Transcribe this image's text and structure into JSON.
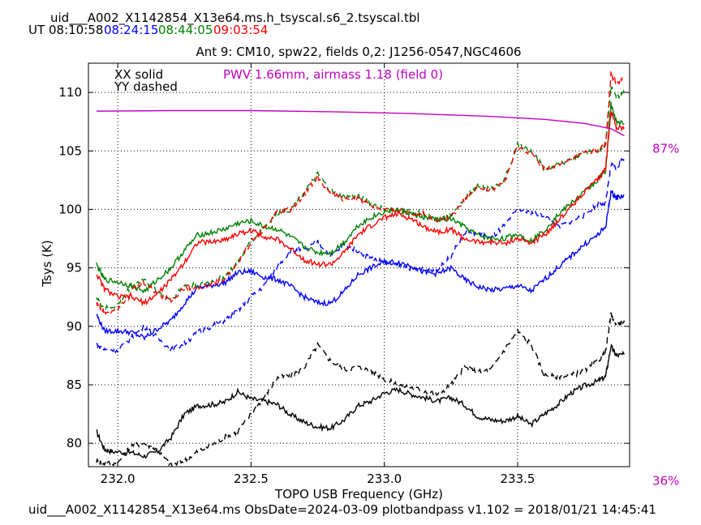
{
  "header": {
    "filename": "uid___A002_X1142854_X13e64.ms.h_tsyscal.s6_2.tsyscal.tbl",
    "ut_label": "UT",
    "times": [
      {
        "text": "08:10:58",
        "color": "#000000"
      },
      {
        "text": "08:24:15",
        "color": "#0000ff"
      },
      {
        "text": "08:44:05",
        "color": "#008000"
      },
      {
        "text": "09:03:54",
        "color": "#ff0000"
      }
    ]
  },
  "footer": {
    "text": "uid___A002_X1142854_X13e64.ms  ObsDate=2024-03-09   plotbandpass v1.102 = 2018/01/21 14:45:41"
  },
  "chart_data": {
    "type": "line",
    "title": "Ant 9: CM10,  spw22,  fields 0,2: J1256-0547,NGC4606",
    "xlabel": "TOPO USB Frequency (GHz)",
    "ylabel": "Tsys (K)",
    "xlim": [
      231.89,
      233.92
    ],
    "ylim": [
      78,
      112.5
    ],
    "xticks": [
      232.0,
      232.5,
      233.0,
      233.5
    ],
    "xtick_labels": [
      "232.0",
      "232.5",
      "233.0",
      "233.5"
    ],
    "yticks": [
      80,
      85,
      90,
      95,
      100,
      105,
      110
    ],
    "ytick_labels": [
      "80",
      "85",
      "90",
      "95",
      "100",
      "105",
      "110"
    ],
    "grid": true,
    "legend_text": [
      "XX solid",
      "YY dashed"
    ],
    "annotation": {
      "text": "PWV 1.66mm, airmass 1.18 (field 0)",
      "color": "#c000c0"
    },
    "atmosphere": {
      "color": "#c000c0",
      "right_labels": [
        {
          "text": "87%",
          "y": 105.2
        },
        {
          "text": "36%",
          "y": 76.8
        }
      ],
      "x": [
        231.92,
        232.2,
        232.5,
        232.8,
        233.1,
        233.4,
        233.6,
        233.75,
        233.85,
        233.9
      ],
      "y": [
        108.4,
        108.45,
        108.45,
        108.35,
        108.2,
        107.95,
        107.7,
        107.35,
        106.9,
        106.3
      ]
    },
    "series": [
      {
        "color": "#000000",
        "dash": false,
        "x": [
          231.92,
          231.95,
          231.98,
          232.05,
          232.1,
          232.15,
          232.2,
          232.25,
          232.3,
          232.35,
          232.4,
          232.45,
          232.5,
          232.55,
          232.6,
          232.65,
          232.7,
          232.75,
          232.8,
          232.85,
          232.9,
          232.95,
          233.0,
          233.05,
          233.1,
          233.15,
          233.2,
          233.25,
          233.3,
          233.35,
          233.4,
          233.45,
          233.5,
          233.55,
          233.6,
          233.65,
          233.7,
          233.75,
          233.8,
          233.83,
          233.85,
          233.87,
          233.9
        ],
        "y": [
          81.0,
          79.5,
          79.3,
          79.2,
          78.9,
          79.3,
          80.5,
          82.5,
          83.2,
          83.3,
          83.5,
          84.4,
          83.8,
          83.6,
          83.3,
          82.4,
          81.8,
          81.4,
          81.3,
          82.0,
          83.2,
          83.6,
          84.3,
          84.6,
          84.2,
          83.9,
          83.6,
          83.9,
          83.3,
          82.3,
          82.0,
          81.9,
          82.3,
          81.6,
          82.5,
          83.3,
          84.3,
          84.9,
          85.3,
          85.7,
          88.3,
          87.5,
          87.6
        ]
      },
      {
        "color": "#000000",
        "dash": true,
        "x": [
          231.92,
          231.95,
          232.0,
          232.05,
          232.1,
          232.15,
          232.2,
          232.25,
          232.3,
          232.35,
          232.4,
          232.45,
          232.5,
          232.55,
          232.6,
          232.65,
          232.7,
          232.75,
          232.8,
          232.85,
          232.9,
          232.95,
          233.0,
          233.05,
          233.1,
          233.15,
          233.2,
          233.25,
          233.3,
          233.35,
          233.4,
          233.45,
          233.5,
          233.55,
          233.6,
          233.65,
          233.7,
          233.75,
          233.8,
          233.83,
          233.85,
          233.87,
          233.9
        ],
        "y": [
          78.5,
          78.3,
          78.3,
          79.8,
          80.0,
          79.4,
          78.1,
          78.5,
          79.3,
          79.8,
          80.5,
          81.0,
          82.5,
          84.0,
          85.6,
          85.8,
          86.5,
          88.4,
          87.0,
          86.3,
          86.5,
          86.2,
          85.5,
          85.0,
          84.8,
          84.5,
          84.2,
          85.0,
          86.5,
          86.1,
          86.3,
          88.0,
          89.6,
          88.5,
          85.8,
          85.7,
          85.8,
          86.2,
          87.0,
          87.8,
          91.0,
          90.2,
          90.5
        ]
      },
      {
        "color": "#0000ff",
        "dash": false,
        "x": [
          231.92,
          231.95,
          232.0,
          232.05,
          232.1,
          232.15,
          232.2,
          232.25,
          232.3,
          232.35,
          232.4,
          232.45,
          232.5,
          232.55,
          232.6,
          232.65,
          232.7,
          232.75,
          232.8,
          232.85,
          232.9,
          232.95,
          233.0,
          233.05,
          233.1,
          233.15,
          233.2,
          233.25,
          233.3,
          233.35,
          233.4,
          233.45,
          233.5,
          233.55,
          233.6,
          233.65,
          233.7,
          233.75,
          233.8,
          233.83,
          233.85,
          233.87,
          233.9
        ],
        "y": [
          91.0,
          89.6,
          89.6,
          89.5,
          89.0,
          89.8,
          90.5,
          92.0,
          93.3,
          93.5,
          93.7,
          94.6,
          94.7,
          94.2,
          94.0,
          93.4,
          92.5,
          92.0,
          92.0,
          93.0,
          94.4,
          95.0,
          95.5,
          95.5,
          95.2,
          94.6,
          94.5,
          95.0,
          94.0,
          93.4,
          93.1,
          93.2,
          93.5,
          93.0,
          94.0,
          95.0,
          96.0,
          97.0,
          97.8,
          98.5,
          101.5,
          101.0,
          101.2
        ]
      },
      {
        "color": "#0000ff",
        "dash": true,
        "x": [
          231.92,
          231.95,
          232.0,
          232.05,
          232.1,
          232.15,
          232.2,
          232.25,
          232.3,
          232.35,
          232.4,
          232.45,
          232.5,
          232.55,
          232.6,
          232.65,
          232.7,
          232.75,
          232.8,
          232.85,
          232.9,
          232.95,
          233.0,
          233.05,
          233.1,
          233.15,
          233.2,
          233.25,
          233.3,
          233.35,
          233.4,
          233.45,
          233.5,
          233.55,
          233.6,
          233.65,
          233.7,
          233.75,
          233.8,
          233.83,
          233.85,
          233.87,
          233.9
        ],
        "y": [
          88.5,
          88.0,
          88.0,
          89.0,
          90.0,
          89.0,
          88.0,
          88.5,
          89.5,
          90.0,
          90.5,
          91.3,
          92.5,
          93.5,
          95.2,
          96.5,
          96.5,
          97.2,
          96.0,
          97.0,
          96.5,
          95.8,
          95.5,
          95.2,
          95.0,
          94.8,
          94.8,
          96.0,
          98.0,
          98.0,
          97.5,
          98.6,
          100.0,
          99.7,
          99.5,
          98.5,
          99.0,
          99.5,
          100.5,
          100.5,
          103.8,
          103.5,
          104.5
        ]
      },
      {
        "color": "#008000",
        "dash": false,
        "x": [
          231.92,
          231.95,
          232.0,
          232.05,
          232.1,
          232.15,
          232.2,
          232.25,
          232.3,
          232.35,
          232.4,
          232.45,
          232.5,
          232.55,
          232.6,
          232.65,
          232.7,
          232.75,
          232.8,
          232.85,
          232.9,
          232.95,
          233.0,
          233.05,
          233.1,
          233.15,
          233.2,
          233.25,
          233.3,
          233.35,
          233.4,
          233.45,
          233.5,
          233.55,
          233.6,
          233.65,
          233.7,
          233.75,
          233.8,
          233.83,
          233.85,
          233.87,
          233.9
        ],
        "y": [
          95.3,
          94.0,
          93.8,
          93.5,
          93.0,
          94.0,
          95.0,
          96.5,
          97.8,
          98.0,
          98.3,
          98.8,
          99.0,
          98.5,
          98.3,
          97.6,
          96.8,
          96.3,
          96.3,
          97.2,
          98.6,
          99.3,
          99.8,
          100.0,
          99.6,
          99.3,
          99.1,
          99.2,
          98.5,
          97.8,
          97.5,
          97.5,
          97.9,
          97.3,
          98.2,
          99.5,
          100.5,
          101.5,
          102.5,
          103.3,
          109.0,
          107.5,
          107.3
        ]
      },
      {
        "color": "#008000",
        "dash": true,
        "x": [
          231.92,
          231.95,
          232.0,
          232.05,
          232.1,
          232.15,
          232.2,
          232.25,
          232.3,
          232.35,
          232.4,
          232.45,
          232.5,
          232.55,
          232.6,
          232.65,
          232.7,
          232.75,
          232.8,
          232.85,
          232.9,
          232.95,
          233.0,
          233.05,
          233.1,
          233.15,
          233.2,
          233.25,
          233.3,
          233.35,
          233.4,
          233.45,
          233.5,
          233.55,
          233.6,
          233.65,
          233.7,
          233.75,
          233.8,
          233.83,
          233.85,
          233.87,
          233.9
        ],
        "y": [
          92.5,
          91.5,
          91.8,
          93.5,
          94.0,
          93.0,
          92.3,
          93.5,
          93.5,
          93.8,
          94.2,
          95.5,
          97.3,
          98.5,
          99.7,
          100.0,
          101.5,
          103.0,
          101.5,
          101.0,
          101.2,
          100.5,
          100.0,
          99.8,
          99.8,
          99.6,
          99.0,
          99.5,
          101.0,
          102.0,
          101.7,
          102.5,
          105.5,
          105.0,
          103.5,
          103.8,
          104.3,
          104.8,
          105.0,
          105.5,
          110.5,
          109.5,
          110.0
        ]
      },
      {
        "color": "#ff0000",
        "dash": false,
        "x": [
          231.92,
          231.95,
          232.0,
          232.05,
          232.1,
          232.15,
          232.2,
          232.25,
          232.3,
          232.35,
          232.4,
          232.45,
          232.5,
          232.55,
          232.6,
          232.65,
          232.7,
          232.75,
          232.8,
          232.85,
          232.9,
          232.95,
          233.0,
          233.05,
          233.1,
          233.15,
          233.2,
          233.25,
          233.3,
          233.35,
          233.4,
          233.45,
          233.5,
          233.55,
          233.6,
          233.65,
          233.7,
          233.75,
          233.8,
          233.83,
          233.85,
          233.87,
          233.9
        ],
        "y": [
          94.5,
          93.2,
          92.5,
          92.5,
          92.0,
          92.8,
          94.0,
          95.5,
          97.2,
          97.2,
          97.4,
          97.9,
          98.2,
          97.7,
          97.4,
          96.6,
          95.7,
          95.3,
          95.3,
          96.3,
          97.8,
          98.6,
          99.3,
          99.6,
          99.2,
          98.5,
          98.1,
          98.3,
          97.5,
          97.2,
          97.2,
          97.1,
          97.5,
          97.1,
          97.8,
          99.0,
          100.2,
          101.5,
          102.5,
          103.5,
          108.5,
          107.0,
          107.0
        ]
      },
      {
        "color": "#ff0000",
        "dash": true,
        "x": [
          231.92,
          231.95,
          232.0,
          232.05,
          232.1,
          232.15,
          232.2,
          232.25,
          232.3,
          232.35,
          232.4,
          232.45,
          232.5,
          232.55,
          232.6,
          232.65,
          232.7,
          232.75,
          232.8,
          232.85,
          232.9,
          232.95,
          233.0,
          233.05,
          233.1,
          233.15,
          233.2,
          233.25,
          233.3,
          233.35,
          233.4,
          233.45,
          233.5,
          233.55,
          233.6,
          233.65,
          233.7,
          233.75,
          233.8,
          233.83,
          233.85,
          233.87,
          233.9
        ],
        "y": [
          92.0,
          91.2,
          91.5,
          93.0,
          93.7,
          92.8,
          92.2,
          93.3,
          93.3,
          93.6,
          94.0,
          95.4,
          97.2,
          98.4,
          99.8,
          100.0,
          101.3,
          102.8,
          101.3,
          100.8,
          101.0,
          100.3,
          100.0,
          99.9,
          99.7,
          99.6,
          99.0,
          99.4,
          100.8,
          101.9,
          101.6,
          102.3,
          105.3,
          104.8,
          103.4,
          103.7,
          104.2,
          104.8,
          105.0,
          105.5,
          111.5,
          110.8,
          111.3
        ]
      }
    ]
  }
}
